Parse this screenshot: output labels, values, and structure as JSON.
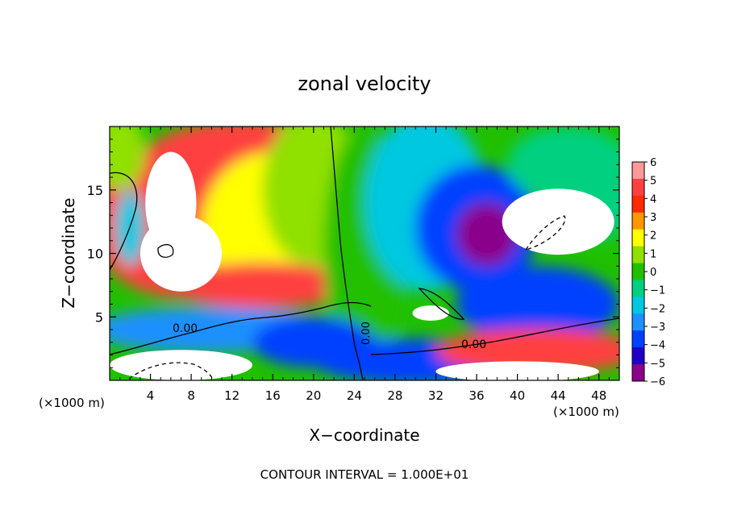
{
  "chart_data": {
    "type": "heatmap",
    "title": "zonal velocity",
    "xlabel": "X−coordinate",
    "ylabel": "Z−coordinate",
    "x_unit_left": "(×1000 m)",
    "x_unit_right": "(×1000 m)",
    "xlim": [
      0,
      50
    ],
    "ylim": [
      0,
      20
    ],
    "x_ticks": [
      4,
      8,
      12,
      16,
      20,
      24,
      28,
      32,
      36,
      40,
      44,
      48
    ],
    "y_ticks": [
      5,
      10,
      15
    ],
    "colorbar": {
      "min": -6,
      "max": 6,
      "labels": [
        "6",
        "5",
        "4",
        "3",
        "2",
        "1",
        "0",
        "−1",
        "−2",
        "−3",
        "−4",
        "−5",
        "−6"
      ],
      "colors": [
        "#8b008b",
        "#1f00c8",
        "#0040ff",
        "#1e90ff",
        "#00c8e0",
        "#00d080",
        "#20c000",
        "#90e000",
        "#ffff00",
        "#ff9800",
        "#ff2a00",
        "#ff4040",
        "#ff9999"
      ]
    },
    "contour_labels": [
      "0.00",
      "0.00",
      "0.00"
    ],
    "footer": "CONTOUR INTERVAL =  1.000E+01",
    "field_blobs": [
      {
        "x": 7,
        "z": 12.5,
        "rx": 9,
        "rz": 6,
        "value": 5
      },
      {
        "x": 13,
        "z": 17,
        "rx": 10,
        "rz": 3.5,
        "value": 4.5
      },
      {
        "x": 16,
        "z": 12,
        "rx": 7,
        "rz": 6,
        "value": 2
      },
      {
        "x": 20,
        "z": 15,
        "rx": 5,
        "rz": 6,
        "value": 1
      },
      {
        "x": 15,
        "z": 7.5,
        "rx": 9,
        "rz": 1.8,
        "value": 5
      },
      {
        "x": 25,
        "z": 10,
        "rx": 4,
        "rz": 10,
        "value": 0.2
      },
      {
        "x": 31,
        "z": 14,
        "rx": 6,
        "rz": 7,
        "value": -2
      },
      {
        "x": 36,
        "z": 12,
        "rx": 6,
        "rz": 5,
        "value": -4.5
      },
      {
        "x": 37,
        "z": 11.5,
        "rx": 3,
        "rz": 2.5,
        "value": -6
      },
      {
        "x": 45,
        "z": 17,
        "rx": 6,
        "rz": 3,
        "value": -1.5
      },
      {
        "x": 42,
        "z": 6,
        "rx": 8,
        "rz": 3,
        "value": -4
      },
      {
        "x": 10,
        "z": 4,
        "rx": 12,
        "rz": 1.8,
        "value": -3.5
      },
      {
        "x": 20,
        "z": 3,
        "rx": 6,
        "rz": 2,
        "value": -4
      },
      {
        "x": 30,
        "z": 1.5,
        "rx": 10,
        "rz": 1.8,
        "value": -4.5
      },
      {
        "x": 42,
        "z": 2.3,
        "rx": 10,
        "rz": 1.8,
        "value": 4.5
      },
      {
        "x": 1,
        "z": 18,
        "rx": 2.5,
        "rz": 3,
        "value": 0.5
      },
      {
        "x": 2,
        "z": 12,
        "rx": 1.5,
        "rz": 3,
        "value": -2.5
      },
      {
        "x": 48,
        "z": 14,
        "rx": 3,
        "rz": 3,
        "value": -1
      }
    ],
    "saturated_regions": [
      {
        "x": 6,
        "z": 14,
        "rx": 2.5,
        "rz": 4,
        "sign": "positive"
      },
      {
        "x": 7,
        "z": 10,
        "rx": 4,
        "rz": 3,
        "sign": "positive"
      },
      {
        "x": 44,
        "z": 12.5,
        "rx": 5.5,
        "rz": 2.6,
        "sign": "negative"
      },
      {
        "x": 7,
        "z": 1.2,
        "rx": 7,
        "rz": 1.2,
        "sign": "negative"
      },
      {
        "x": 40,
        "z": 0.7,
        "rx": 8,
        "rz": 0.8,
        "sign": "positive"
      },
      {
        "x": 31.5,
        "z": 5.3,
        "rx": 1.8,
        "rz": 0.6,
        "sign": "negative"
      }
    ]
  }
}
